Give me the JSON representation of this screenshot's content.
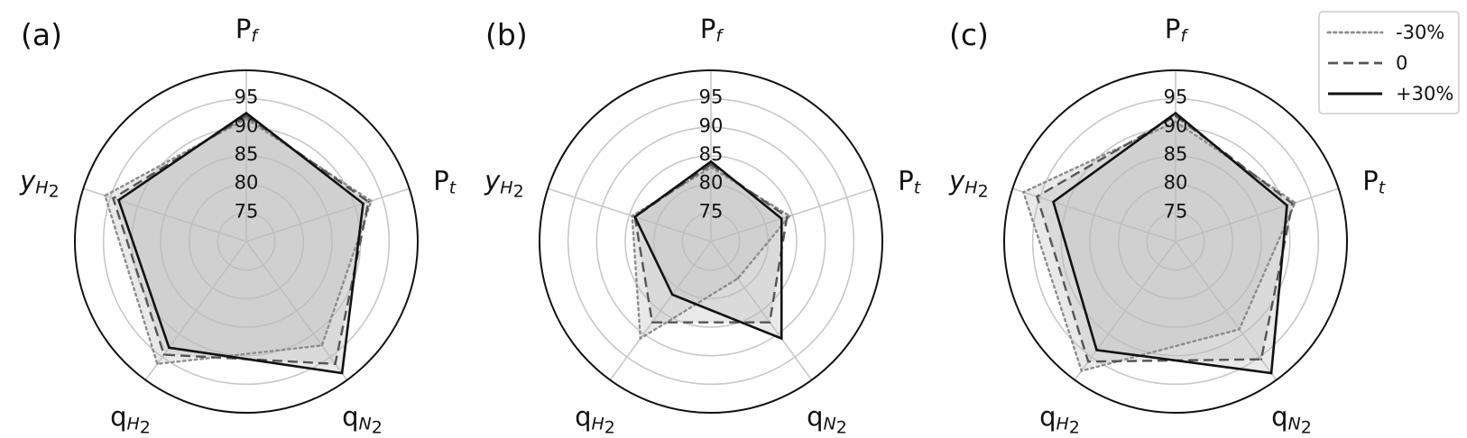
{
  "chart_data": [
    {
      "type": "radar",
      "panel": "(a)",
      "axes": [
        "Pf",
        "Pt",
        "qN2",
        "qH2",
        "yH2"
      ],
      "rlim": [
        70,
        100
      ],
      "rticks": [
        75,
        80,
        85,
        90,
        95
      ],
      "series": [
        {
          "name": "-30%",
          "values": [
            91.5,
            93.0,
            92.5,
            96.5,
            96.0
          ]
        },
        {
          "name": "0",
          "values": [
            92.0,
            92.5,
            96.5,
            94.5,
            94.5
          ]
        },
        {
          "name": "+30%",
          "values": [
            92.5,
            91.5,
            98.5,
            93.0,
            93.5
          ]
        }
      ]
    },
    {
      "type": "radar",
      "panel": "(b)",
      "axes": [
        "Pf",
        "Pt",
        "qN2",
        "qH2",
        "yH2"
      ],
      "rlim": [
        70,
        100
      ],
      "rticks": [
        75,
        80,
        85,
        90,
        95
      ],
      "series": [
        {
          "name": "-30%",
          "values": [
            83.0,
            84.5,
            78.0,
            91.0,
            84.5
          ]
        },
        {
          "name": "0",
          "values": [
            83.5,
            84.0,
            87.5,
            87.5,
            84.0
          ]
        },
        {
          "name": "+30%",
          "values": [
            84.0,
            83.0,
            91.0,
            81.5,
            84.0
          ]
        }
      ]
    },
    {
      "type": "radar",
      "panel": "(c)",
      "axes": [
        "Pf",
        "Pt",
        "qN2",
        "qH2",
        "yH2"
      ],
      "rlim": [
        70,
        100
      ],
      "rticks": [
        75,
        80,
        85,
        90,
        95
      ],
      "series": [
        {
          "name": "-30%",
          "values": [
            91.0,
            92.0,
            89.0,
            98.0,
            98.0
          ]
        },
        {
          "name": "0",
          "values": [
            92.0,
            91.5,
            95.5,
            96.0,
            95.5
          ]
        },
        {
          "name": "+30%",
          "values": [
            92.5,
            90.5,
            98.5,
            93.5,
            92.5
          ]
        }
      ]
    }
  ],
  "axis_labels": [
    {
      "main": "P",
      "sub": "f",
      "sub_style": "italic"
    },
    {
      "main": "P",
      "sub": "t",
      "sub_style": "italic"
    },
    {
      "main": "q",
      "sub": "N",
      "sub_style": "italic",
      "sub_num": "2"
    },
    {
      "main": "q",
      "sub": "H",
      "sub_style": "italic",
      "sub_num": "2"
    },
    {
      "main": "y",
      "main_style": "italic",
      "sub": "H",
      "sub_style": "italic",
      "sub_num": "2"
    }
  ],
  "legend": {
    "placement": "top-right",
    "entries": [
      {
        "label": "-30%",
        "dash": "dotted",
        "color": "#8c8c8c"
      },
      {
        "label": "0",
        "dash": "dashed",
        "color": "#555555"
      },
      {
        "label": "+30%",
        "dash": "solid",
        "color": "#111111"
      }
    ]
  },
  "colors": {
    "fill": "#bdbdbd",
    "grid": "#c8c8c8",
    "outer_circle": "#111111",
    "text": "#111111"
  }
}
